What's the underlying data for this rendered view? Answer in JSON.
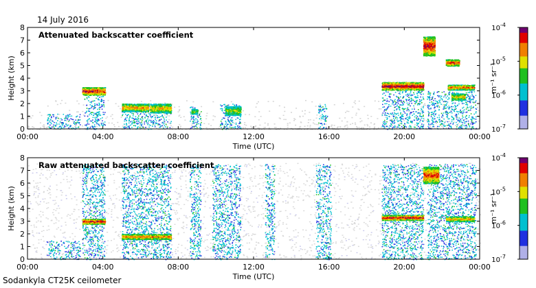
{
  "header": {
    "date": "14 July 2016"
  },
  "footer": {
    "label": "Sodankyla CT25K ceilometer"
  },
  "chart_data": [
    {
      "type": "heatmap",
      "title": "Attenuated backscatter coefficient",
      "xlabel": "Time (UTC)",
      "ylabel": "Height (km)",
      "xlim": [
        0,
        24
      ],
      "ylim": [
        0,
        8
      ],
      "xticks": [
        "00:00",
        "04:00",
        "08:00",
        "12:00",
        "16:00",
        "20:00",
        "00:00"
      ],
      "yticks": [
        "0",
        "1",
        "2",
        "3",
        "4",
        "5",
        "6",
        "7",
        "8"
      ],
      "colorbar": {
        "scale": "log",
        "range": [
          1e-07,
          0.0001
        ],
        "ticks": [
          {
            "base": "10",
            "exp": "-4"
          },
          {
            "base": "10",
            "exp": "-5"
          },
          {
            "base": "10",
            "exp": "-6"
          },
          {
            "base": "10",
            "exp": "-7"
          }
        ],
        "unit": "m⁻¹ sr⁻¹"
      },
      "layers": [
        {
          "t": [
            2.9,
            4.1
          ],
          "h": [
            2.7,
            3.3
          ],
          "intensity": 0.9
        },
        {
          "t": [
            5.0,
            6.4
          ],
          "h": [
            1.4,
            2.0
          ],
          "intensity": 0.75
        },
        {
          "t": [
            6.5,
            7.6
          ],
          "h": [
            1.3,
            2.0
          ],
          "intensity": 0.7
        },
        {
          "t": [
            8.7,
            9.0
          ],
          "h": [
            1.2,
            1.6
          ],
          "intensity": 0.6
        },
        {
          "t": [
            10.5,
            11.3
          ],
          "h": [
            1.1,
            1.8
          ],
          "intensity": 0.6
        },
        {
          "t": [
            18.8,
            21.0
          ],
          "h": [
            3.1,
            3.7
          ],
          "intensity": 0.95
        },
        {
          "t": [
            21.0,
            21.6
          ],
          "h": [
            5.8,
            7.3
          ],
          "intensity": 0.9
        },
        {
          "t": [
            22.2,
            22.9
          ],
          "h": [
            5.0,
            5.5
          ],
          "intensity": 0.85
        },
        {
          "t": [
            22.3,
            23.7
          ],
          "h": [
            3.1,
            3.5
          ],
          "intensity": 0.8
        },
        {
          "t": [
            22.5,
            23.2
          ],
          "h": [
            2.3,
            2.8
          ],
          "intensity": 0.7
        }
      ]
    },
    {
      "type": "heatmap",
      "title": "Raw attenuated backscatter coefficient",
      "xlabel": "Time (UTC)",
      "ylabel": "Height (km)",
      "xlim": [
        0,
        24
      ],
      "ylim": [
        0,
        8
      ],
      "xticks": [
        "00:00",
        "04:00",
        "08:00",
        "12:00",
        "16:00",
        "20:00",
        "00:00"
      ],
      "yticks": [
        "0",
        "1",
        "2",
        "3",
        "4",
        "5",
        "6",
        "7",
        "8"
      ],
      "colorbar": {
        "scale": "log",
        "range": [
          1e-07,
          0.0001
        ],
        "ticks": [
          {
            "base": "10",
            "exp": "-4"
          },
          {
            "base": "10",
            "exp": "-5"
          },
          {
            "base": "10",
            "exp": "-6"
          },
          {
            "base": "10",
            "exp": "-7"
          }
        ],
        "unit": "m⁻¹ sr⁻¹"
      },
      "layers": [
        {
          "t": [
            2.9,
            4.1
          ],
          "h": [
            2.8,
            3.2
          ],
          "intensity": 0.9
        },
        {
          "t": [
            5.0,
            7.6
          ],
          "h": [
            1.6,
            2.0
          ],
          "intensity": 0.8
        },
        {
          "t": [
            18.8,
            21.0
          ],
          "h": [
            3.1,
            3.5
          ],
          "intensity": 0.9
        },
        {
          "t": [
            21.0,
            21.8
          ],
          "h": [
            6.0,
            7.3
          ],
          "intensity": 0.85
        },
        {
          "t": [
            22.2,
            23.7
          ],
          "h": [
            3.0,
            3.4
          ],
          "intensity": 0.75
        }
      ]
    }
  ]
}
